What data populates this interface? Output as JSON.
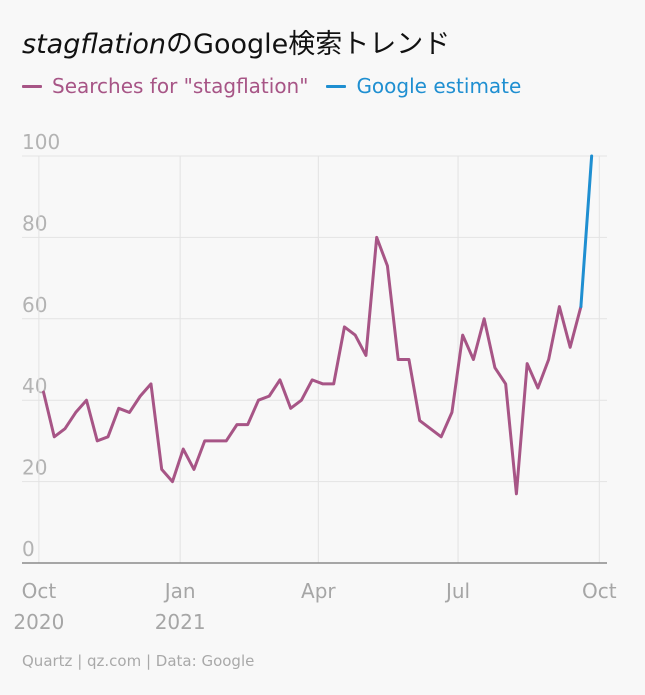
{
  "title": {
    "italic": "stagflation",
    "rest": "のGoogle検索トレンド"
  },
  "legend": [
    {
      "label": "Searches for \"stagflation\"",
      "color": "#a75586"
    },
    {
      "label": "Google estimate",
      "color": "#1f8fd1"
    }
  ],
  "footer": "Quartz | qz.com | Data: Google",
  "chart_data": {
    "type": "line",
    "title": "stagflationのGoogle検索トレンド",
    "ylim": [
      0,
      100
    ],
    "y_ticks": [
      0,
      20,
      40,
      60,
      80,
      100
    ],
    "x_ticks": [
      {
        "date": "2020-10-01",
        "label": "Oct",
        "sublabel": "2020"
      },
      {
        "date": "2021-01-01",
        "label": "Jan",
        "sublabel": "2021"
      },
      {
        "date": "2021-04-01",
        "label": "Apr",
        "sublabel": ""
      },
      {
        "date": "2021-07-01",
        "label": "Jul",
        "sublabel": ""
      },
      {
        "date": "2021-10-01",
        "label": "Oct",
        "sublabel": ""
      }
    ],
    "x_range": [
      "2020-09-20",
      "2021-10-06"
    ],
    "grid": true,
    "series": [
      {
        "name": "Searches for \"stagflation\"",
        "color": "#a75586",
        "points": [
          [
            "2020-10-04",
            42
          ],
          [
            "2020-10-11",
            31
          ],
          [
            "2020-10-18",
            33
          ],
          [
            "2020-10-25",
            37
          ],
          [
            "2020-11-01",
            40
          ],
          [
            "2020-11-08",
            30
          ],
          [
            "2020-11-15",
            31
          ],
          [
            "2020-11-22",
            38
          ],
          [
            "2020-11-29",
            37
          ],
          [
            "2020-12-06",
            41
          ],
          [
            "2020-12-13",
            44
          ],
          [
            "2020-12-20",
            23
          ],
          [
            "2020-12-27",
            20
          ],
          [
            "2021-01-03",
            28
          ],
          [
            "2021-01-10",
            23
          ],
          [
            "2021-01-17",
            30
          ],
          [
            "2021-01-24",
            30
          ],
          [
            "2021-01-31",
            30
          ],
          [
            "2021-02-07",
            34
          ],
          [
            "2021-02-14",
            34
          ],
          [
            "2021-02-21",
            40
          ],
          [
            "2021-02-28",
            41
          ],
          [
            "2021-03-07",
            45
          ],
          [
            "2021-03-14",
            38
          ],
          [
            "2021-03-21",
            40
          ],
          [
            "2021-03-28",
            45
          ],
          [
            "2021-04-04",
            44
          ],
          [
            "2021-04-11",
            44
          ],
          [
            "2021-04-18",
            58
          ],
          [
            "2021-04-25",
            56
          ],
          [
            "2021-05-02",
            51
          ],
          [
            "2021-05-09",
            80
          ],
          [
            "2021-05-16",
            73
          ],
          [
            "2021-05-23",
            50
          ],
          [
            "2021-05-30",
            50
          ],
          [
            "2021-06-06",
            35
          ],
          [
            "2021-06-13",
            33
          ],
          [
            "2021-06-20",
            31
          ],
          [
            "2021-06-27",
            37
          ],
          [
            "2021-07-04",
            56
          ],
          [
            "2021-07-11",
            50
          ],
          [
            "2021-07-18",
            60
          ],
          [
            "2021-07-25",
            48
          ],
          [
            "2021-08-01",
            44
          ],
          [
            "2021-08-08",
            17
          ],
          [
            "2021-08-15",
            49
          ],
          [
            "2021-08-22",
            43
          ],
          [
            "2021-08-29",
            50
          ],
          [
            "2021-09-05",
            63
          ],
          [
            "2021-09-12",
            53
          ],
          [
            "2021-09-19",
            63
          ]
        ]
      },
      {
        "name": "Google estimate",
        "color": "#1f8fd1",
        "points": [
          [
            "2021-09-19",
            63
          ],
          [
            "2021-09-26",
            100
          ]
        ]
      }
    ]
  }
}
